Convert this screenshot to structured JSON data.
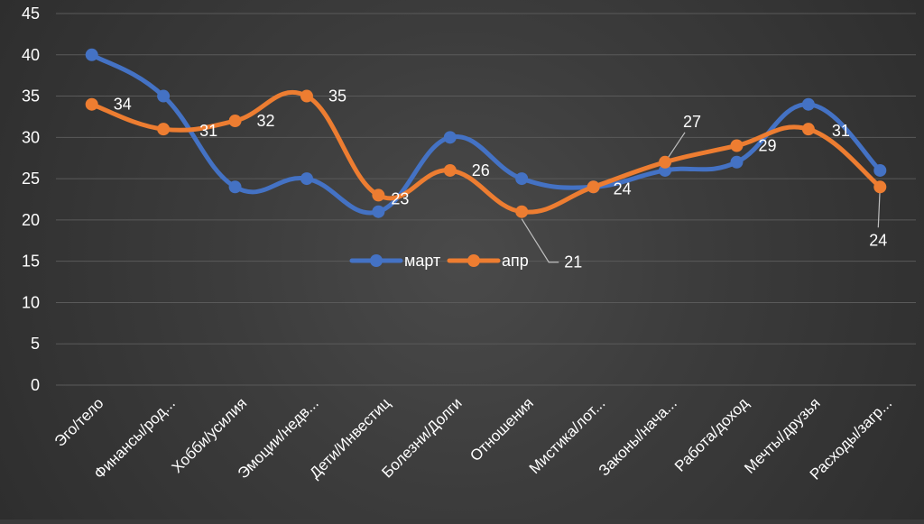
{
  "chart_data": {
    "type": "line",
    "title": "",
    "xlabel": "",
    "ylabel": "",
    "ylim": [
      0,
      45
    ],
    "yticks": [
      0,
      5,
      10,
      15,
      20,
      25,
      30,
      35,
      40,
      45
    ],
    "grid": true,
    "smooth": true,
    "legend_position": "center",
    "categories": [
      "Эго/тело",
      "Финансы/род...",
      "Хобби/усилия",
      "Эмоции/недв...",
      "Дети/Инвестиц",
      "Болезни/Долги",
      "Отношения",
      "Мистика/лот...",
      "Законы/нача...",
      "Работа/доход",
      "Мечты/друзья",
      "Расходы/загр..."
    ],
    "series": [
      {
        "name": "март",
        "color": "#4472c4",
        "values": [
          40,
          35,
          24,
          25,
          21,
          30,
          25,
          24,
          26,
          27,
          34,
          26
        ]
      },
      {
        "name": "апр",
        "color": "#ed7d31",
        "values": [
          34,
          31,
          32,
          35,
          23,
          26,
          21,
          24,
          27,
          29,
          31,
          24
        ]
      }
    ],
    "data_labels": [
      "34",
      "31",
      "32",
      "35",
      "23",
      "26",
      "21",
      "24",
      "27",
      "29",
      "31",
      "24"
    ]
  }
}
